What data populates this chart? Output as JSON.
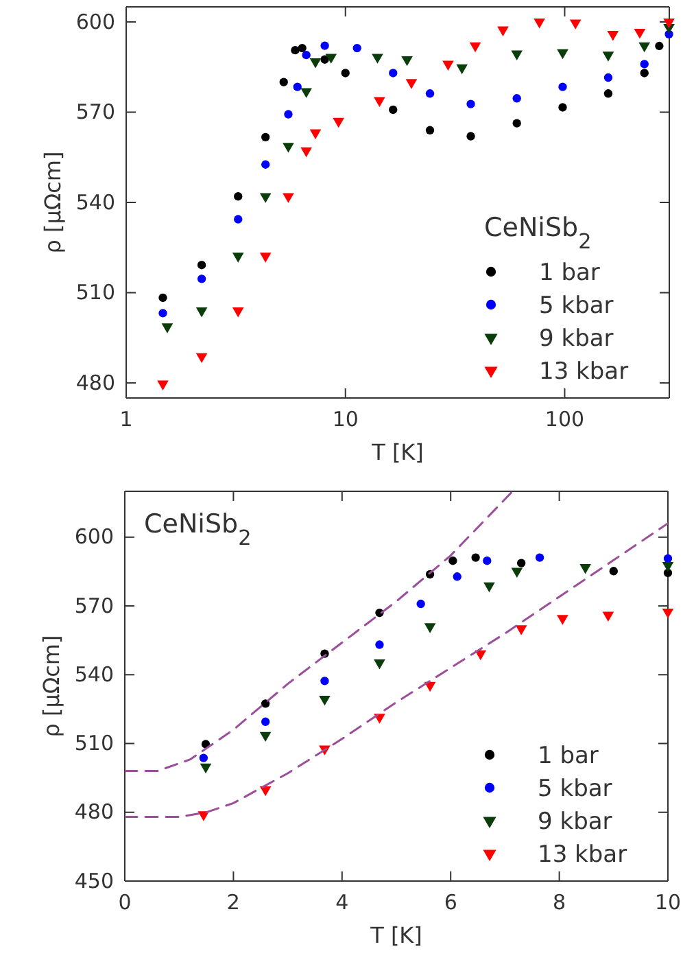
{
  "chart_data": [
    {
      "type": "scatter",
      "xlabel": "T [K]",
      "ylabel": "ρ [μΩcm]",
      "log": "x",
      "xlim": [
        1,
        300
      ],
      "xticks": [
        1,
        10,
        100
      ],
      "ylim": [
        475,
        605
      ],
      "yticks": [
        480,
        510,
        540,
        570,
        600
      ],
      "grid": false,
      "legend": "bottom right",
      "legend_title": "CeNiSb$_{2}$",
      "series": [
        {
          "name": "1 bar",
          "color": "#000000",
          "marker": "circle",
          "x": [
            1.47,
            2.21,
            3.24,
            4.32,
            5.23,
            5.9,
            6.35,
            8.05,
            10,
            16.5,
            24.3,
            37.3,
            60.5,
            97.9,
            158,
            231,
            270
          ],
          "values": [
            508.3,
            519.2,
            542,
            561.7,
            580,
            590.6,
            591.3,
            587.5,
            583,
            570.8,
            564,
            562,
            566.3,
            571.6,
            576.2,
            583,
            592
          ]
        },
        {
          "name": "5 kbar",
          "color": "#0000ff",
          "marker": "circle",
          "x": [
            1.47,
            2.21,
            3.24,
            4.32,
            5.49,
            6.04,
            6.63,
            8.05,
            11.3,
            16.5,
            24.3,
            37.3,
            60.5,
            97.9,
            158,
            231,
            299
          ],
          "values": [
            503.2,
            514.6,
            534.4,
            552.6,
            569.3,
            578.4,
            589,
            592.1,
            591.3,
            583,
            576.2,
            572.7,
            574.6,
            578.4,
            581.5,
            586,
            595.9
          ]
        },
        {
          "name": "9 kbar",
          "color": "#0b3d0b",
          "marker": "triangle",
          "x": [
            1.54,
            2.21,
            3.24,
            4.32,
            5.49,
            6.63,
            7.3,
            8.6,
            14,
            19.1,
            34,
            60.5,
            97.9,
            158,
            231,
            299
          ],
          "values": [
            498.7,
            504,
            522.2,
            542,
            558.7,
            576.9,
            586.8,
            588.3,
            588.3,
            587.5,
            584.8,
            589.4,
            589.8,
            589,
            592.1,
            598.2
          ]
        },
        {
          "name": "13 kbar",
          "color": "#ff0000",
          "marker": "triangle",
          "x": [
            1.47,
            2.21,
            3.24,
            4.32,
            5.49,
            6.63,
            7.3,
            9.3,
            14.3,
            20,
            29.4,
            39.1,
            52.3,
            76.7,
            112,
            166,
            220,
            299
          ],
          "values": [
            479.7,
            488.8,
            504,
            522.2,
            542,
            557.2,
            563.2,
            567,
            573.9,
            579.9,
            586,
            592.1,
            597.4,
            600,
            599.7,
            595.9,
            596.6,
            600
          ]
        }
      ]
    },
    {
      "type": "scatter",
      "xlabel": "T [K]",
      "ylabel": "ρ [μΩcm]",
      "xlim": [
        0,
        10
      ],
      "xticks": [
        0,
        2,
        4,
        6,
        8,
        10
      ],
      "ylim": [
        450,
        620
      ],
      "yticks": [
        450,
        480,
        510,
        540,
        570,
        600
      ],
      "grid": false,
      "legend": "bottom right",
      "annotations": [
        "CeNiSb$_{2}$"
      ],
      "series": [
        {
          "name": "1 bar",
          "color": "#000000",
          "marker": "circle",
          "x": [
            1.49,
            2.59,
            3.68,
            4.69,
            5.62,
            6.04,
            6.46,
            7.3,
            9,
            10
          ],
          "values": [
            509.7,
            527.4,
            549.2,
            567,
            583.8,
            589.7,
            591.1,
            588.7,
            585.2,
            584.4
          ]
        },
        {
          "name": "5 kbar",
          "color": "#0000ff",
          "marker": "circle",
          "x": [
            1.45,
            2.59,
            3.68,
            4.69,
            5.45,
            6.12,
            6.67,
            7.64,
            10
          ],
          "values": [
            503.7,
            519.5,
            537.3,
            553.1,
            570.9,
            582.8,
            589.7,
            591.1,
            590.7
          ]
        },
        {
          "name": "9 kbar",
          "color": "#0b3d0b",
          "marker": "triangle",
          "x": [
            1.49,
            2.59,
            3.68,
            4.69,
            5.62,
            6.71,
            7.22,
            8.48,
            10
          ],
          "values": [
            499.8,
            513.6,
            529.4,
            545.2,
            561,
            578.8,
            585.2,
            586.8,
            587.7
          ]
        },
        {
          "name": "13 kbar",
          "color": "#ff0000",
          "marker": "triangle",
          "x": [
            1.45,
            2.59,
            3.68,
            4.69,
            5.62,
            6.55,
            7.3,
            8.06,
            8.9,
            10
          ],
          "values": [
            479,
            489.9,
            507.7,
            521.5,
            535.4,
            549.2,
            560.1,
            564.6,
            566,
            567.4
          ]
        },
        {
          "type": "line",
          "color": "#9b4f9b",
          "line_style": "dashed",
          "x": [
            0,
            0.6,
            1.2,
            2,
            3,
            4,
            5,
            6,
            7.14
          ],
          "values": [
            498,
            498,
            503,
            516,
            536,
            554,
            572,
            592,
            620
          ]
        },
        {
          "type": "line",
          "color": "#9b4f9b",
          "line_style": "dashed",
          "x": [
            0,
            1,
            1.5,
            2,
            3,
            4,
            5,
            6,
            7,
            8,
            9,
            10
          ],
          "values": [
            478,
            478,
            480,
            484,
            497,
            512,
            528,
            543,
            558,
            574,
            590,
            606
          ]
        }
      ]
    }
  ]
}
